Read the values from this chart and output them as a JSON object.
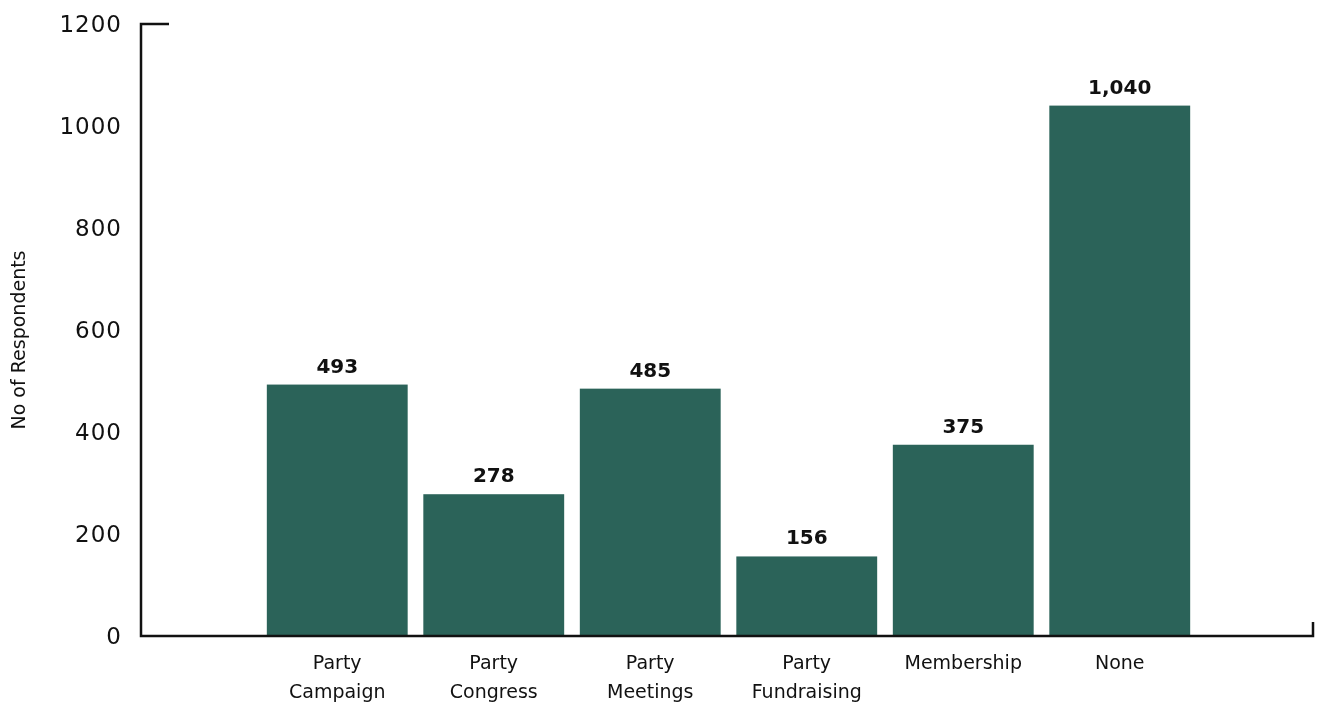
{
  "chart_data": {
    "type": "bar",
    "ylabel": "No of Respondents",
    "categories": [
      "Party Campaign",
      "Party Congress",
      "Party Meetings",
      "Party Fundraising",
      "Membership",
      "None"
    ],
    "values": [
      493,
      278,
      485,
      156,
      375,
      1040
    ],
    "value_labels": [
      "493",
      "278",
      "485",
      "156",
      "375",
      "1,040"
    ],
    "color": "#2b6359",
    "ylim": [
      0,
      1200
    ],
    "yticks": [
      0,
      200,
      400,
      600,
      800,
      1000,
      1200
    ],
    "grid": false
  }
}
